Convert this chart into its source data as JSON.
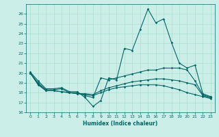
{
  "xlabel": "Humidex (Indice chaleur)",
  "ylabel": "",
  "xlim": [
    -0.5,
    23.5
  ],
  "ylim": [
    16,
    27
  ],
  "yticks": [
    16,
    17,
    18,
    19,
    20,
    21,
    22,
    23,
    24,
    25,
    26
  ],
  "xticks": [
    0,
    1,
    2,
    3,
    4,
    5,
    6,
    7,
    8,
    9,
    10,
    11,
    12,
    13,
    14,
    15,
    16,
    17,
    18,
    19,
    20,
    21,
    22,
    23
  ],
  "bg_color": "#cceee8",
  "grid_color": "#aaddcc",
  "line_color": "#006666",
  "line_width": 0.8,
  "marker": "D",
  "marker_size": 1.5,
  "series": [
    [
      20.1,
      19.2,
      18.4,
      18.4,
      18.5,
      18.1,
      18.1,
      17.5,
      16.6,
      17.2,
      19.5,
      19.3,
      22.5,
      22.3,
      24.4,
      26.5,
      25.1,
      25.5,
      23.1,
      21.0,
      20.5,
      20.8,
      17.9,
      17.6
    ],
    [
      20.0,
      19.0,
      18.3,
      18.3,
      18.4,
      18.0,
      18.0,
      17.7,
      17.5,
      19.5,
      19.3,
      19.5,
      19.7,
      19.9,
      20.1,
      20.3,
      20.3,
      20.5,
      20.5,
      20.5,
      20.3,
      19.2,
      17.8,
      17.5
    ],
    [
      20.0,
      18.9,
      18.2,
      18.2,
      18.1,
      18.0,
      17.9,
      17.9,
      17.8,
      18.2,
      18.5,
      18.7,
      18.9,
      19.1,
      19.2,
      19.3,
      19.4,
      19.4,
      19.3,
      19.2,
      19.0,
      18.8,
      17.7,
      17.5
    ],
    [
      20.0,
      18.8,
      18.2,
      18.2,
      18.1,
      18.0,
      17.9,
      17.8,
      17.7,
      18.0,
      18.3,
      18.5,
      18.6,
      18.7,
      18.8,
      18.8,
      18.8,
      18.7,
      18.5,
      18.3,
      18.0,
      17.8,
      17.6,
      17.4
    ]
  ]
}
